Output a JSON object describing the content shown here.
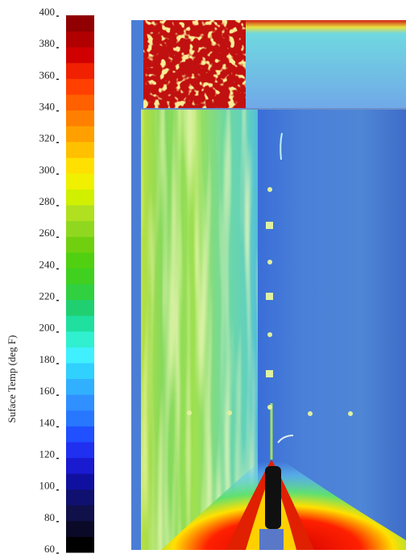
{
  "chart_data": {
    "type": "colorbar",
    "axis_label": "Suface Temp (deg F)",
    "ylim": [
      60,
      400
    ],
    "yticks": [
      60,
      80,
      100,
      120,
      140,
      160,
      180,
      200,
      220,
      240,
      260,
      280,
      300,
      320,
      340,
      360,
      380,
      400
    ],
    "colormap": [
      "#000000",
      "#0a0a28",
      "#10104a",
      "#101070",
      "#1010a0",
      "#1a1ad0",
      "#2030f0",
      "#2050ff",
      "#2878ff",
      "#3090ff",
      "#30b0ff",
      "#30d0ff",
      "#40f0ff",
      "#30f0d0",
      "#20e0a0",
      "#20d070",
      "#30d040",
      "#40d020",
      "#50d010",
      "#70d010",
      "#90d820",
      "#b0e020",
      "#d0f000",
      "#f0f000",
      "#ffe000",
      "#ffc000",
      "#ffa000",
      "#ff8000",
      "#ff6000",
      "#ff4000",
      "#f02000",
      "#d00000",
      "#b00000",
      "#900000"
    ]
  }
}
